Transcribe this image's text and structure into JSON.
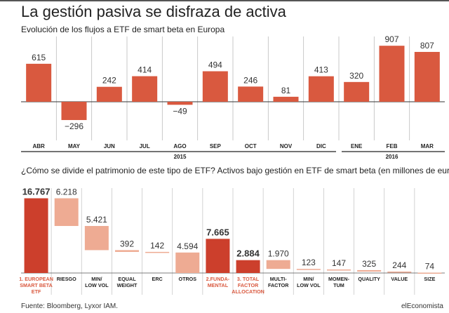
{
  "header": {
    "title": "La gestión pasiva se disfraza de activa",
    "subtitle": "Evolución de los flujos a ETF de smart beta en Europa"
  },
  "section2": {
    "subtitle": "¿Cómo se divide el patrimonio de este tipo de ETF? Activos bajo gestión en ETF de smart beta (en millones de euros)"
  },
  "footer": {
    "source": "Fuente: Bloomberg, Lyxor IAM.",
    "brand": "elEconomista"
  },
  "colors": {
    "bar": "#d9593f",
    "highlight_bar": "#cc3f2c",
    "light_bar": "#eeab93",
    "highlight_label": "#d9593f"
  },
  "chart_data": [
    {
      "type": "bar",
      "title": "Evolución de los flujos a ETF de smart beta en Europa",
      "categories": [
        "ABR",
        "MAY",
        "JUN",
        "JUL",
        "AGO",
        "SEP",
        "OCT",
        "NOV",
        "DIC",
        "ENE",
        "FEB",
        "MAR"
      ],
      "labels": [
        "615",
        "−296",
        "242",
        "414",
        "−49",
        "494",
        "246",
        "81",
        "413",
        "320",
        "907",
        "807"
      ],
      "values": [
        615,
        -296,
        242,
        414,
        -49,
        494,
        246,
        81,
        413,
        320,
        907,
        807
      ],
      "year_groups": [
        {
          "label": "2015",
          "from": 0,
          "to": 8
        },
        {
          "label": "2016",
          "from": 9,
          "to": 11
        }
      ],
      "grid": true
    },
    {
      "type": "bar",
      "title": "¿Cómo se divide el patrimonio de este tipo de ETF? Activos bajo gestión en ETF de smart beta (en millones de euros)",
      "categories": [
        [
          "1. EUROPEAN",
          "SMART BETA",
          "ETF"
        ],
        [
          "RIESGO"
        ],
        [
          "MIN/",
          "LOW VOL"
        ],
        [
          "EQUAL",
          "WEIGHT"
        ],
        [
          "ERC"
        ],
        [
          "OTROS"
        ],
        [
          "2.FUNDA-",
          "MENTAL"
        ],
        [
          "3. TOTAL",
          "FACTOR",
          "ALLOCATION"
        ],
        [
          "MULTI-",
          "FACTOR"
        ],
        [
          "MIN/",
          "LOW VOL"
        ],
        [
          "MOMEN-",
          "TUM"
        ],
        [
          "QUALITY"
        ],
        [
          "VALUE"
        ],
        [
          "SIZE"
        ]
      ],
      "labels": [
        "16.767",
        "6.218",
        "5.421",
        "392",
        "142",
        "4.594",
        "7.665",
        "2.884",
        "1.970",
        "123",
        "147",
        "325",
        "244",
        "74"
      ],
      "values": [
        16767,
        6218,
        5421,
        392,
        142,
        4594,
        7665,
        2884,
        1970,
        123,
        147,
        325,
        244,
        74
      ],
      "highlighted": [
        0,
        6,
        7
      ],
      "float_base": [
        null,
        10549,
        5128,
        4736,
        4594,
        0,
        null,
        null,
        914,
        791,
        644,
        319,
        75,
        0
      ],
      "grid": true
    }
  ]
}
